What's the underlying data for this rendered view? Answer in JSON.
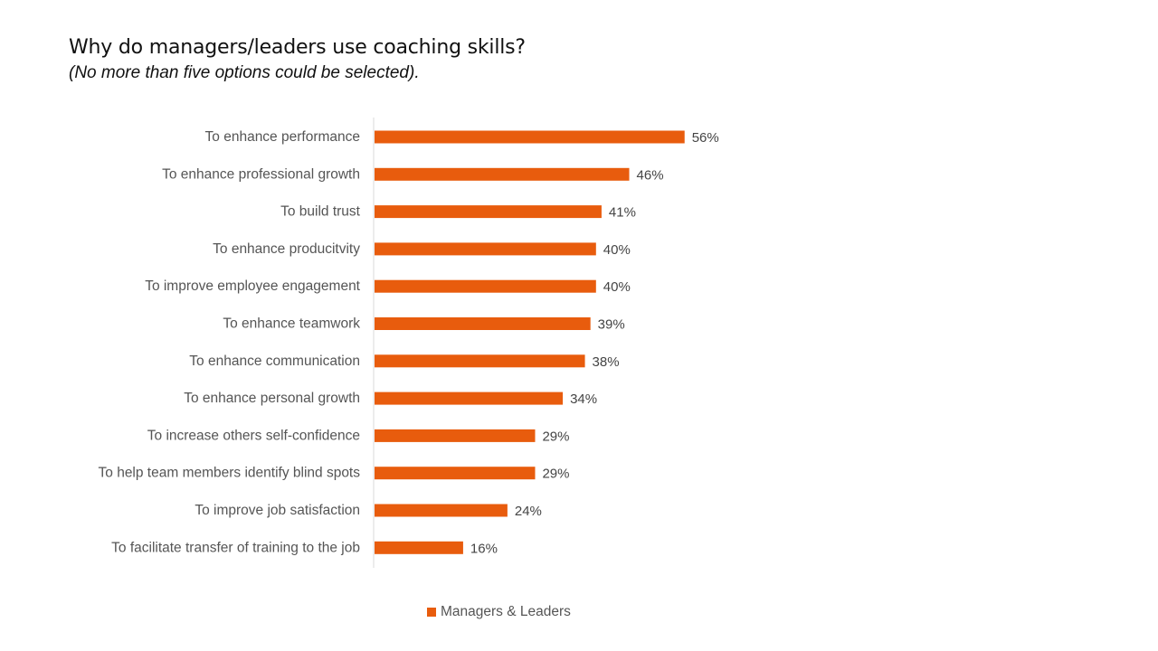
{
  "chart_data": {
    "type": "bar",
    "orientation": "horizontal",
    "title": "Why do managers/leaders use coaching skills?",
    "subtitle": "(No more than five options could be selected).",
    "categories": [
      "To enhance performance",
      "To enhance professional growth",
      "To build trust",
      "To enhance producitvity",
      "To improve employee engagement",
      "To enhance teamwork",
      "To enhance communication",
      "To enhance personal growth",
      "To increase others self-confidence",
      "To help team members identify blind spots",
      "To improve job satisfaction",
      "To facilitate transfer of training to the job"
    ],
    "series": [
      {
        "name": "Managers & Leaders",
        "color": "#E85C0D",
        "values": [
          56,
          46,
          41,
          40,
          40,
          39,
          38,
          34,
          29,
          29,
          24,
          16
        ],
        "labels": [
          "56%",
          "46%",
          "41%",
          "40%",
          "40%",
          "39%",
          "38%",
          "34%",
          "29%",
          "29%",
          "24%",
          "16%"
        ]
      }
    ],
    "xlim": [
      0,
      100
    ],
    "grid": false,
    "legend_position": "bottom"
  }
}
